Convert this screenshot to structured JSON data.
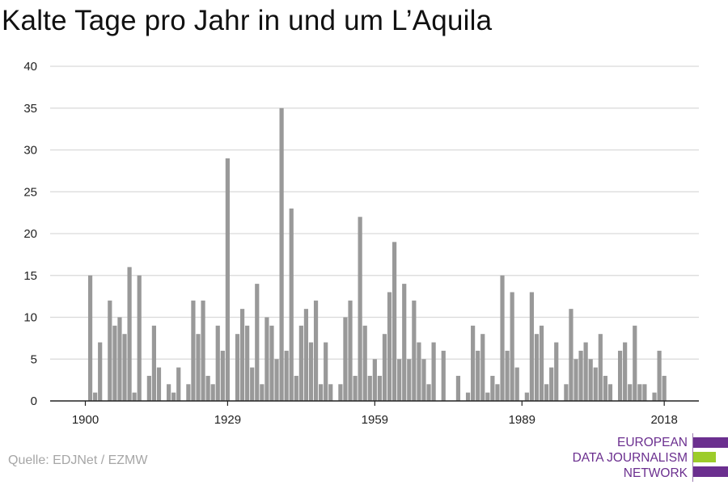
{
  "title": "Kalte Tage pro Jahr in und um L’Aquila",
  "source": "Quelle: EDJNet / EZMW",
  "logo": {
    "lines": [
      "EUROPEAN",
      "DATA JOURNALISM",
      "NETWORK"
    ],
    "colors": {
      "purple": "#6b2f8f",
      "green": "#9ccc2a"
    }
  },
  "colors": {
    "bar": "#999999",
    "grid": "#d9d9d9",
    "axis": "#222222"
  },
  "chart_data": {
    "type": "bar",
    "title": "Kalte Tage pro Jahr in und um L’Aquila",
    "xlabel": "",
    "ylabel": "",
    "ylim": [
      0,
      40
    ],
    "yticks": [
      0,
      5,
      10,
      15,
      20,
      25,
      30,
      35,
      40
    ],
    "xlim": [
      1899,
      2019
    ],
    "xticks": [
      1900,
      1929,
      1959,
      1989,
      2018
    ],
    "grid": true,
    "x": [
      1900,
      1901,
      1902,
      1903,
      1904,
      1905,
      1906,
      1907,
      1908,
      1909,
      1910,
      1911,
      1912,
      1913,
      1914,
      1915,
      1916,
      1917,
      1918,
      1919,
      1920,
      1921,
      1922,
      1923,
      1924,
      1925,
      1926,
      1927,
      1928,
      1929,
      1930,
      1931,
      1932,
      1933,
      1934,
      1935,
      1936,
      1937,
      1938,
      1939,
      1940,
      1941,
      1942,
      1943,
      1944,
      1945,
      1946,
      1947,
      1948,
      1949,
      1950,
      1951,
      1952,
      1953,
      1954,
      1955,
      1956,
      1957,
      1958,
      1959,
      1960,
      1961,
      1962,
      1963,
      1964,
      1965,
      1966,
      1967,
      1968,
      1969,
      1970,
      1971,
      1972,
      1973,
      1974,
      1975,
      1976,
      1977,
      1978,
      1979,
      1980,
      1981,
      1982,
      1983,
      1984,
      1985,
      1986,
      1987,
      1988,
      1989,
      1990,
      1991,
      1992,
      1993,
      1994,
      1995,
      1996,
      1997,
      1998,
      1999,
      2000,
      2001,
      2002,
      2003,
      2004,
      2005,
      2006,
      2007,
      2008,
      2009,
      2010,
      2011,
      2012,
      2013,
      2014,
      2015,
      2016,
      2017,
      2018
    ],
    "values": [
      0,
      15,
      1,
      7,
      0,
      12,
      9,
      10,
      8,
      16,
      1,
      15,
      0,
      3,
      9,
      4,
      0,
      2,
      1,
      4,
      0,
      2,
      12,
      8,
      12,
      3,
      2,
      9,
      6,
      29,
      0,
      8,
      11,
      9,
      4,
      14,
      2,
      10,
      9,
      5,
      35,
      6,
      23,
      3,
      9,
      11,
      7,
      12,
      2,
      7,
      2,
      0,
      2,
      10,
      12,
      3,
      22,
      9,
      3,
      5,
      3,
      8,
      13,
      19,
      5,
      14,
      5,
      12,
      7,
      5,
      2,
      7,
      0,
      6,
      0,
      0,
      3,
      0,
      1,
      9,
      6,
      8,
      1,
      3,
      2,
      15,
      6,
      13,
      4,
      0,
      1,
      13,
      8,
      9,
      2,
      4,
      7,
      0,
      2,
      11,
      5,
      6,
      7,
      5,
      4,
      8,
      3,
      2,
      0,
      6,
      7,
      2,
      9,
      2,
      2,
      0,
      1,
      6,
      3
    ]
  }
}
